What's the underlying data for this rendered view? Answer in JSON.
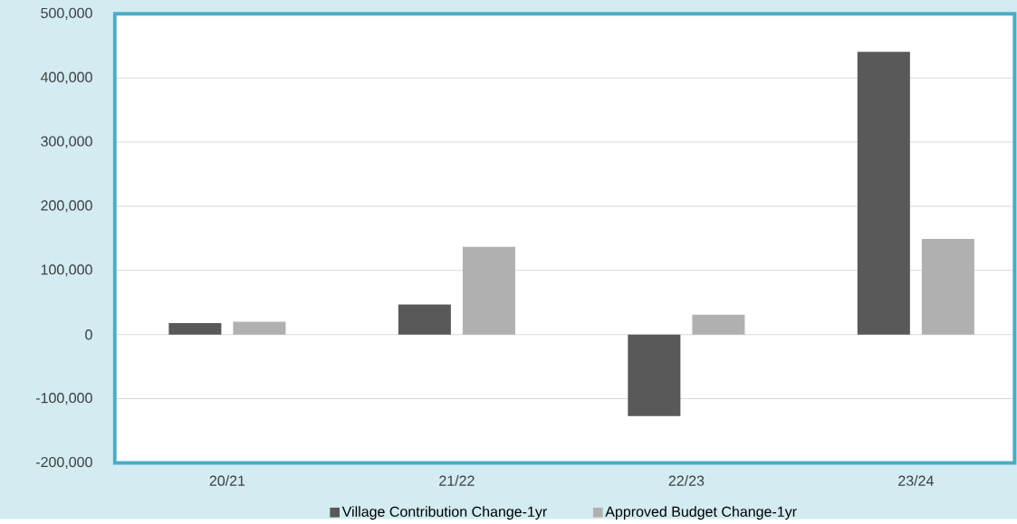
{
  "chart_data": {
    "type": "bar",
    "categories": [
      "20/21",
      "21/22",
      "22/23",
      "23/24"
    ],
    "series": [
      {
        "name": "Village Contribution  Change-1yr",
        "color": "#595959",
        "values": [
          18000,
          47000,
          -127000,
          441000
        ]
      },
      {
        "name": "Approved Budget Change-1yr",
        "color": "#b0b0b0",
        "values": [
          20000,
          137000,
          31000,
          149000
        ]
      }
    ],
    "ylim": [
      -200000,
      500000
    ],
    "yticks": [
      {
        "value": -200000,
        "label": "-200,000"
      },
      {
        "value": -100000,
        "label": "-100,000"
      },
      {
        "value": 0,
        "label": "0"
      },
      {
        "value": 100000,
        "label": "100,000"
      },
      {
        "value": 200000,
        "label": "200,000"
      },
      {
        "value": 300000,
        "label": "300,000"
      },
      {
        "value": 400000,
        "label": "400,000"
      },
      {
        "value": 500000,
        "label": "500,000"
      }
    ],
    "grid": "y",
    "legend": "bottom"
  }
}
